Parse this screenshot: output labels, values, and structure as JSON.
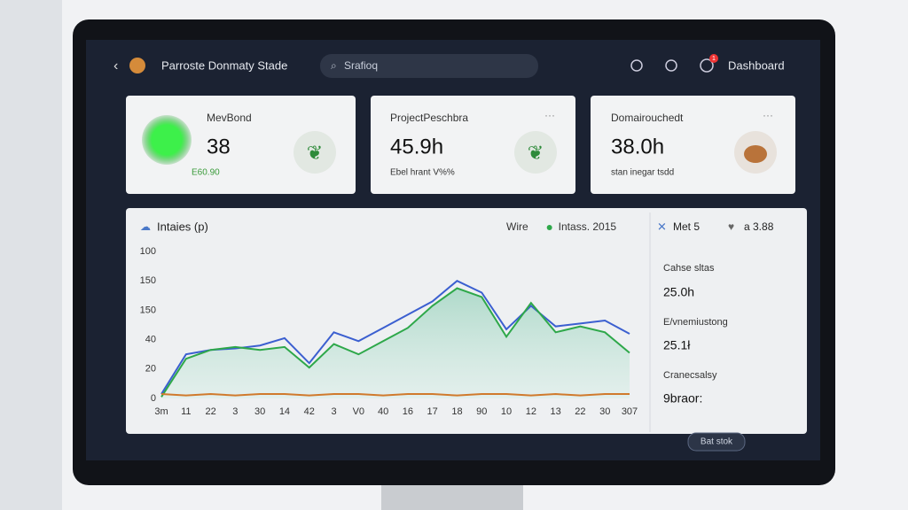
{
  "header": {
    "title": "Parroste Donmaty Stade",
    "search": "Srafioq",
    "badge": "1",
    "menu": "Dashboard"
  },
  "cards": [
    {
      "label": "MevBond",
      "value": "38",
      "sub": "E60.90"
    },
    {
      "label": "ProjectPeschbra",
      "value": "45.9h",
      "sub": "Ebel hrant V%%"
    },
    {
      "label": "Domairouchedt",
      "value": "38.0h",
      "sub": "stan inegar tsdd"
    }
  ],
  "chart_data": {
    "type": "line",
    "title": "Intaies (p)",
    "categories": [
      "3m",
      "11",
      "22",
      "3",
      "30",
      "14",
      "42",
      "3",
      "V0",
      "40",
      "16",
      "17",
      "18",
      "90",
      "10",
      "12",
      "13",
      "22",
      "30",
      "307"
    ],
    "y_labels": [
      "100",
      "150",
      "150",
      "40",
      "20",
      "0"
    ],
    "ylim": [
      0,
      100
    ],
    "series": [
      {
        "name": "Wire",
        "color": "#3b5fd0",
        "values": [
          3,
          30,
          33,
          34,
          36,
          41,
          24,
          45,
          39,
          48,
          57,
          66,
          80,
          72,
          47,
          63,
          49,
          51,
          53,
          44
        ]
      },
      {
        "name": "Intass. 2015",
        "color": "#2ea84a",
        "values": [
          1,
          27,
          33,
          35,
          33,
          35,
          21,
          37,
          30,
          39,
          48,
          63,
          75,
          69,
          42,
          65,
          45,
          49,
          45,
          31
        ]
      },
      {
        "color": "#d07a2c",
        "values": [
          3,
          2,
          3,
          2,
          3,
          3,
          2,
          3,
          3,
          2,
          3,
          3,
          2,
          3,
          3,
          2,
          3,
          2,
          3,
          3
        ]
      }
    ]
  },
  "side": {
    "top_left": "Met 5",
    "top_right": "a 3.88",
    "stats": [
      {
        "label": "Cahse sltas",
        "value": "25.0h"
      },
      {
        "label": "E/vnemiustong",
        "value": "25.1ł"
      },
      {
        "label": "Cranecsalsy",
        "value": "9braor:"
      }
    ]
  },
  "button": "Bat stok"
}
